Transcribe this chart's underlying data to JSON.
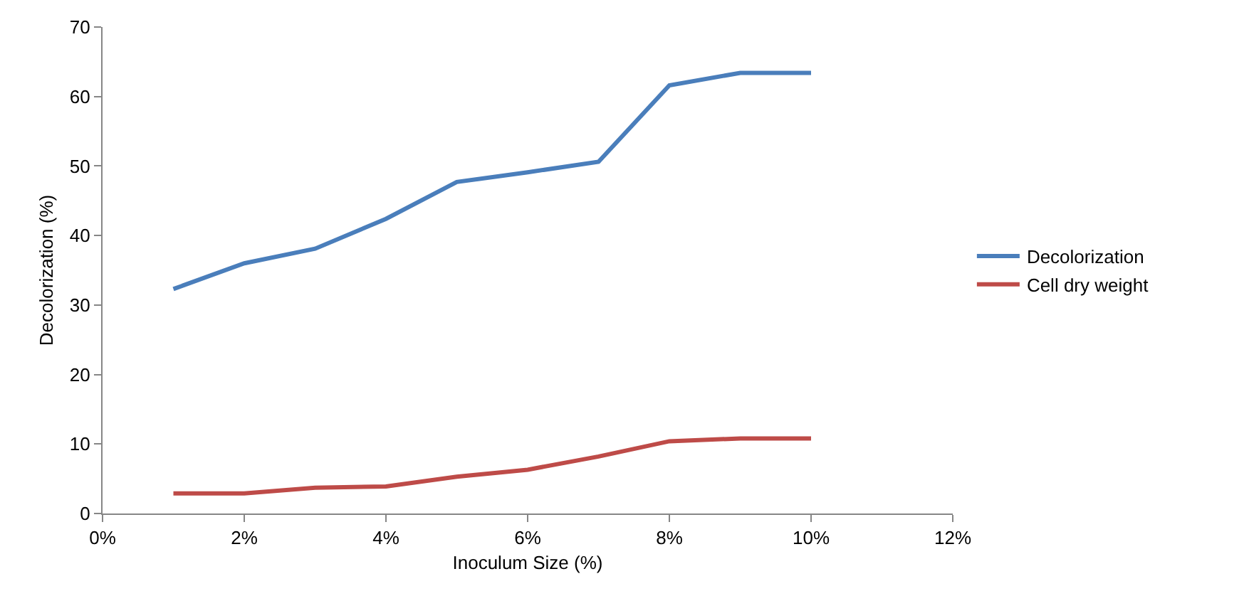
{
  "chart_data": {
    "type": "line",
    "xlabel": "Inoculum Size (%)",
    "ylabel": "Decolorization (%)",
    "x": [
      1,
      2,
      3,
      4,
      5,
      6,
      7,
      8,
      9,
      10
    ],
    "series": [
      {
        "name": "Decolorization",
        "color": "#4a7ebb",
        "values": [
          32.3,
          36.0,
          38.1,
          42.4,
          47.7,
          49.1,
          50.6,
          61.6,
          63.4,
          63.4
        ]
      },
      {
        "name": "Cell dry weight",
        "color": "#be4b48",
        "values": [
          2.9,
          2.9,
          3.7,
          3.9,
          5.3,
          6.3,
          8.2,
          10.4,
          10.8,
          10.8
        ]
      }
    ],
    "xlim": [
      0,
      12
    ],
    "xticks": [
      {
        "value": 0,
        "label": "0%"
      },
      {
        "value": 2,
        "label": "2%"
      },
      {
        "value": 4,
        "label": "4%"
      },
      {
        "value": 6,
        "label": "6%"
      },
      {
        "value": 8,
        "label": "8%"
      },
      {
        "value": 10,
        "label": "10%"
      },
      {
        "value": 12,
        "label": "12%"
      }
    ],
    "ylim": [
      0,
      70
    ],
    "yticks": [
      0,
      10,
      20,
      30,
      40,
      50,
      60,
      70
    ],
    "grid": false,
    "legend": "right",
    "marker": "none",
    "line_style": "solid"
  }
}
